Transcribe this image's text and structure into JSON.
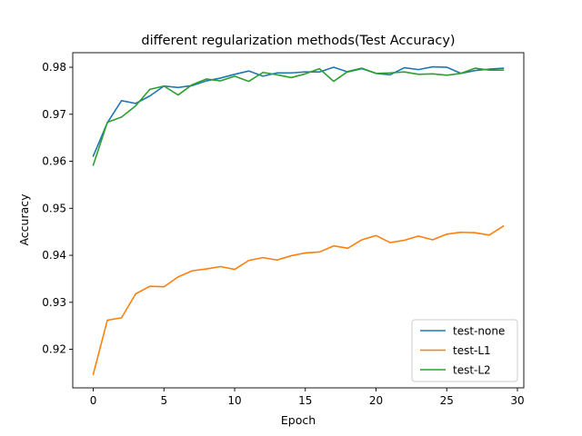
{
  "chart_data": {
    "type": "line",
    "title": "different regularization methods(Test Accuracy)",
    "xlabel": "Epoch",
    "ylabel": "Accuracy",
    "xlim": [
      -1.45,
      30.45
    ],
    "ylim": [
      0.9118,
      0.9831
    ],
    "xticks": [
      0,
      5,
      10,
      15,
      20,
      25,
      30
    ],
    "yticks": [
      0.92,
      0.93,
      0.94,
      0.95,
      0.96,
      0.97,
      0.98
    ],
    "ytick_labels": [
      "0.92",
      "0.93",
      "0.94",
      "0.95",
      "0.96",
      "0.97",
      "0.98"
    ],
    "grid": false,
    "legend_position": "lower-right",
    "x": [
      0,
      1,
      2,
      3,
      4,
      5,
      6,
      7,
      8,
      9,
      10,
      11,
      12,
      13,
      14,
      15,
      16,
      17,
      18,
      19,
      20,
      21,
      22,
      23,
      24,
      25,
      26,
      27,
      28,
      29
    ],
    "series": [
      {
        "name": "test-none",
        "color": "#1f77b4",
        "values": [
          0.9611,
          0.9682,
          0.9729,
          0.9723,
          0.9739,
          0.976,
          0.9757,
          0.9761,
          0.9771,
          0.9777,
          0.9785,
          0.9792,
          0.9781,
          0.9788,
          0.9788,
          0.979,
          0.979,
          0.98,
          0.979,
          0.9797,
          0.9787,
          0.9784,
          0.9799,
          0.9795,
          0.9801,
          0.98,
          0.9787,
          0.9793,
          0.9796,
          0.9798
        ]
      },
      {
        "name": "test-L1",
        "color": "#ff7f0e",
        "values": [
          0.9147,
          0.9262,
          0.9267,
          0.9318,
          0.9334,
          0.9333,
          0.9354,
          0.9367,
          0.9371,
          0.9376,
          0.937,
          0.9389,
          0.9395,
          0.939,
          0.9399,
          0.9405,
          0.9407,
          0.942,
          0.9415,
          0.9433,
          0.9442,
          0.9427,
          0.9432,
          0.9441,
          0.9433,
          0.9445,
          0.9449,
          0.9448,
          0.9443,
          0.9462
        ]
      },
      {
        "name": "test-L2",
        "color": "#2ca02c",
        "values": [
          0.9592,
          0.9683,
          0.9694,
          0.9718,
          0.9753,
          0.976,
          0.9741,
          0.9763,
          0.9775,
          0.9771,
          0.9781,
          0.977,
          0.9789,
          0.9784,
          0.9778,
          0.9786,
          0.9797,
          0.977,
          0.9791,
          0.9798,
          0.9787,
          0.9788,
          0.979,
          0.9785,
          0.9786,
          0.9783,
          0.9787,
          0.9798,
          0.9794,
          0.9794
        ]
      }
    ]
  }
}
